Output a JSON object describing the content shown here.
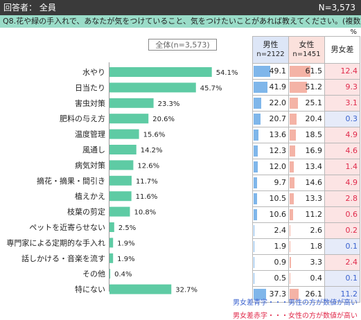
{
  "header": {
    "respondents": "回答者： 全員",
    "n_total": "N=3,573"
  },
  "question": "Q8.花や緑の手入れで、あなたが気をつけていること、気をつけたいことがあれば教えてください。(複数回答)",
  "unit": "%",
  "colors": {
    "bar": "#5ecba4",
    "male_bar": "#7fb6ea",
    "female_bar": "#f4b3a6",
    "pos_text": "#e0294a",
    "neg_text": "#3a62cf"
  },
  "chart_data": {
    "type": "bar",
    "orientation": "horizontal",
    "series_label": "全体(n=3,573)",
    "xlim": [
      0,
      100
    ],
    "categories": [
      "水やり",
      "日当たり",
      "害虫対策",
      "肥料の与え方",
      "温度管理",
      "風通し",
      "病気対策",
      "摘花・摘果・間引き",
      "植えかえ",
      "枝葉の剪定",
      "ペットを近寄らせない",
      "専門家による定期的な手入れ",
      "話しかける・音楽を流す",
      "その他",
      "特にない"
    ],
    "values": [
      54.1,
      45.7,
      23.3,
      20.6,
      15.6,
      14.2,
      12.6,
      11.7,
      11.6,
      10.8,
      2.5,
      1.9,
      1.9,
      0.4,
      32.7
    ],
    "value_labels": [
      "54.1%",
      "45.7%",
      "23.3%",
      "20.6%",
      "15.6%",
      "14.2%",
      "12.6%",
      "11.7%",
      "11.6%",
      "10.8%",
      "2.5%",
      "1.9%",
      "1.9%",
      "0.4%",
      "32.7%"
    ]
  },
  "table": {
    "male_header": "男性",
    "male_n": "n=2122",
    "female_header": "女性",
    "female_n": "n=1451",
    "diff_header": "男女差",
    "male": [
      49.1,
      41.9,
      22.0,
      20.7,
      13.6,
      12.3,
      12.0,
      9.7,
      10.5,
      10.6,
      2.4,
      1.9,
      0.9,
      0.5,
      37.3
    ],
    "female": [
      61.5,
      51.2,
      25.1,
      20.4,
      18.5,
      16.9,
      13.4,
      14.6,
      13.3,
      11.2,
      2.6,
      1.8,
      3.3,
      0.4,
      26.1
    ],
    "diff": [
      12.4,
      9.3,
      3.1,
      0.3,
      4.9,
      4.6,
      1.4,
      4.9,
      2.8,
      0.6,
      0.2,
      0.1,
      2.4,
      0.1,
      11.2
    ],
    "diff_sign": [
      "pos",
      "pos",
      "pos",
      "neg",
      "pos",
      "pos",
      "pos",
      "pos",
      "pos",
      "pos",
      "pos",
      "neg",
      "pos",
      "neg",
      "neg"
    ]
  },
  "notes": {
    "blue": "男女差青字・・・男性の方が数値が高い",
    "red": "男女差赤字・・・女性の方が数値が高い"
  }
}
